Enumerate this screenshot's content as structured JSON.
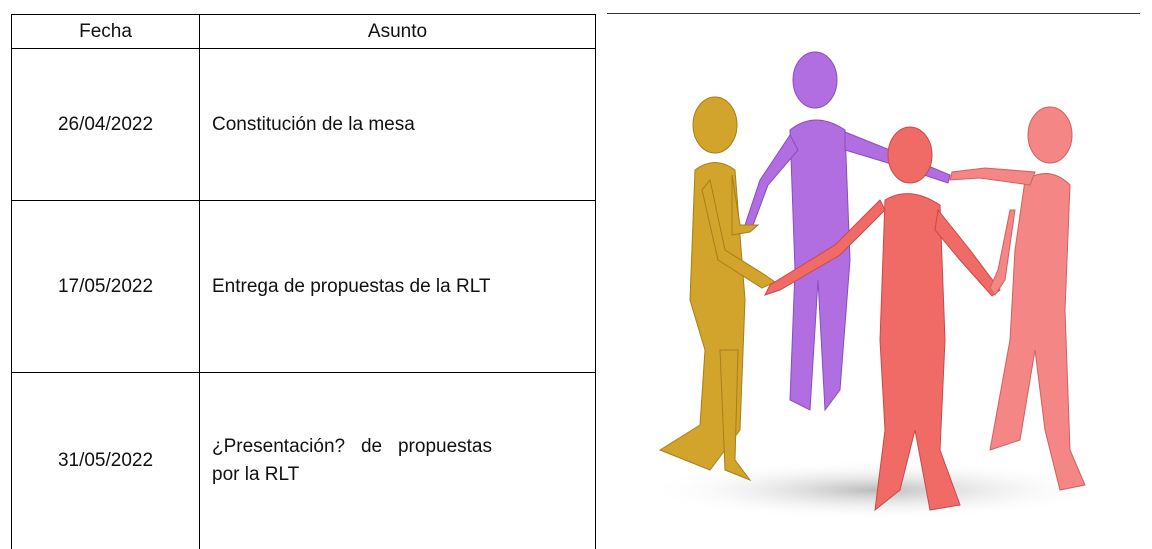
{
  "table": {
    "header": [
      "Fecha",
      "Asunto"
    ],
    "rows": [
      [
        "26/04/2022",
        "Constitución de la mesa"
      ],
      [
        "17/05/2022",
        "Entrega de propuestas de la RLT"
      ],
      [
        "31/05/2022",
        "¿Presentación? de propuestas por la RLT"
      ]
    ]
  }
}
